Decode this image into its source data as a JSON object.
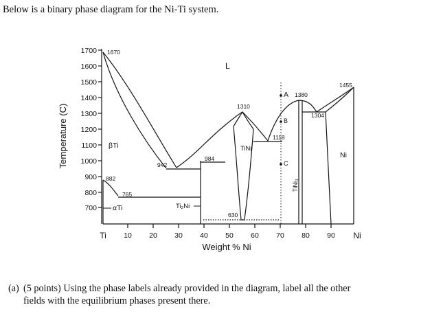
{
  "intro_text": "Below is a binary phase diagram for the Ni-Ti system.",
  "question": {
    "number": "(a)",
    "line1": "(5 points) Using the phase labels already provided in the diagram, label all the other",
    "line2": "fields with the equilibrium phases present there."
  },
  "diagram": {
    "y_axis_label": "Temperature (C)",
    "x_axis_label": "Weight % Ni",
    "y_ticks": [
      "1700",
      "1600",
      "1500",
      "1400",
      "1300",
      "1200",
      "1100",
      "1000",
      "900",
      "800",
      "700"
    ],
    "x_ticks": [
      "10",
      "20",
      "30",
      "40",
      "50",
      "60",
      "70",
      "80",
      "90"
    ],
    "x_end_left": "Ti",
    "x_end_right": "Ni",
    "phase_labels": {
      "liquid": "L",
      "beta_ti": "βTi",
      "alpha_ti": "αTi",
      "tini": "TiNi",
      "ti2ni": "Ti₂Ni",
      "tini3": "TiNi₃",
      "ni": "Ni"
    },
    "temperature_labels": {
      "t1670": "1670",
      "t1455": "1455",
      "t1380": "1380",
      "t1310": "1310",
      "t1304": "1304",
      "t1118": "1118",
      "t984": "984",
      "t942": "942",
      "t882": "882",
      "t765": "765",
      "t630": "630"
    },
    "points": {
      "a": "A",
      "b": "B",
      "c": "C"
    }
  }
}
